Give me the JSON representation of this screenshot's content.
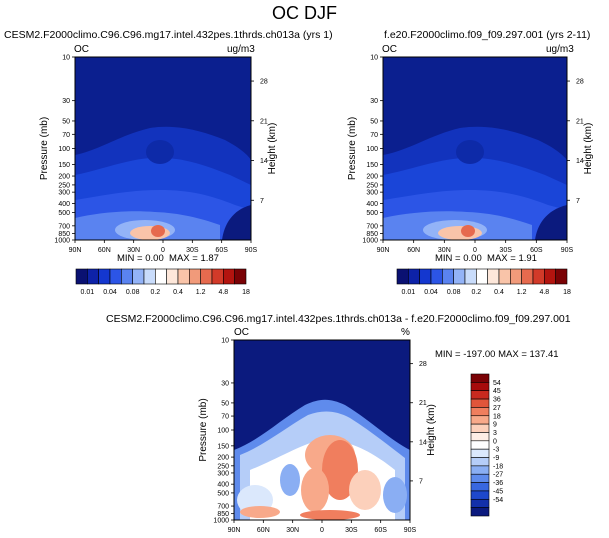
{
  "figure": {
    "title": "OC DJF"
  },
  "panels": {
    "top_left": {
      "title": "CESM2.F2000climo.C96.C96.mg17.intel.432pes.1thrds.ch013a (yrs 1)",
      "var_label": "OC",
      "units_label": "ug/m3",
      "stats": {
        "min_label": "MIN =",
        "min_value": "0.00",
        "max_label": "MAX =",
        "max_value": "1.87"
      }
    },
    "top_right": {
      "title": "f.e20.F2000climo.f09_f09.297.001 (yrs 2-11)",
      "var_label": "OC",
      "units_label": "ug/m3",
      "stats": {
        "min_label": "MIN =",
        "min_value": "0.00",
        "max_label": "MAX =",
        "max_value": "1.91"
      }
    },
    "bottom": {
      "title": "CESM2.F2000climo.C96.C96.mg17.intel.432pes.1thrds.ch013a - f.e20.F2000climo.f09_f09.297.001",
      "var_label": "OC",
      "units_label": "%",
      "stats_text": "MIN = -197.00  MAX = 137.41"
    }
  },
  "colorbars": {
    "top_labels": [
      "0.01",
      "0.04",
      "0.08",
      "0.2",
      "0.4",
      "1.2",
      "4.8",
      "18"
    ],
    "top_colors": [
      "#0a1172",
      "#0d22a8",
      "#1437cf",
      "#2c55e6",
      "#5a83f0",
      "#93b3f7",
      "#c9dcfb",
      "#ffffff",
      "#fde7da",
      "#f9c4a9",
      "#f19a7a",
      "#e66a4e",
      "#d23a29",
      "#b3140f",
      "#7a0205"
    ],
    "bottom_labels": [
      "54",
      "45",
      "36",
      "27",
      "18",
      "9",
      "3",
      "0",
      "-3",
      "-9",
      "-18",
      "-27",
      "-36",
      "-45",
      "-54"
    ],
    "bottom_colors": [
      "#7a0205",
      "#a70b0b",
      "#c92a1f",
      "#e0553a",
      "#f07e5e",
      "#f8a98a",
      "#fcd0bb",
      "#fdeee6",
      "#ffffff",
      "#dbe8fc",
      "#b5cdf8",
      "#8aaef3",
      "#5f8bec",
      "#3867e0",
      "#1e48cc",
      "#1330aa",
      "#0b1a7e"
    ]
  },
  "chart_data": [
    {
      "type": "heatmap",
      "title": "CESM2.F2000climo.C96.C96.mg17.intel.432pes.1thrds.ch013a (yrs 1)",
      "variable": "OC",
      "units": "ug/m3",
      "xlabel": "",
      "ylabel": "Pressure (mb)",
      "y2label": "Height (km)",
      "x_ticks": [
        "90N",
        "60N",
        "30N",
        "0",
        "30S",
        "60S",
        "90S"
      ],
      "y_ticks": [
        "10",
        "30",
        "50",
        "70",
        "100",
        "150",
        "200",
        "250",
        "300",
        "400",
        "500",
        "700",
        "850",
        "1000"
      ],
      "y2_ticks": [
        "28",
        "21",
        "14",
        "7"
      ],
      "ylim": [
        1000,
        10
      ],
      "min": 0.0,
      "max": 1.87
    },
    {
      "type": "heatmap",
      "title": "f.e20.F2000climo.f09_f09.297.001 (yrs 2-11)",
      "variable": "OC",
      "units": "ug/m3",
      "xlabel": "",
      "ylabel": "Pressure (mb)",
      "y2label": "Height (km)",
      "x_ticks": [
        "90N",
        "60N",
        "30N",
        "0",
        "30S",
        "60S",
        "90S"
      ],
      "y_ticks": [
        "10",
        "30",
        "50",
        "70",
        "100",
        "150",
        "200",
        "250",
        "300",
        "400",
        "500",
        "700",
        "850",
        "1000"
      ],
      "y2_ticks": [
        "28",
        "21",
        "14",
        "7"
      ],
      "ylim": [
        1000,
        10
      ],
      "min": 0.0,
      "max": 1.91
    },
    {
      "type": "heatmap",
      "title": "CESM2.F2000climo.C96.C96.mg17.intel.432pes.1thrds.ch013a - f.e20.F2000climo.f09_f09.297.001",
      "variable": "OC",
      "units": "%",
      "xlabel": "",
      "ylabel": "Pressure (mb)",
      "y2label": "Height (km)",
      "x_ticks": [
        "90N",
        "60N",
        "30N",
        "0",
        "30S",
        "60S",
        "90S"
      ],
      "y_ticks": [
        "10",
        "30",
        "50",
        "70",
        "100",
        "150",
        "200",
        "250",
        "300",
        "400",
        "500",
        "700",
        "850",
        "1000"
      ],
      "y2_ticks": [
        "28",
        "21",
        "14",
        "7"
      ],
      "ylim": [
        1000,
        10
      ],
      "min": -197.0,
      "max": 137.41
    }
  ]
}
